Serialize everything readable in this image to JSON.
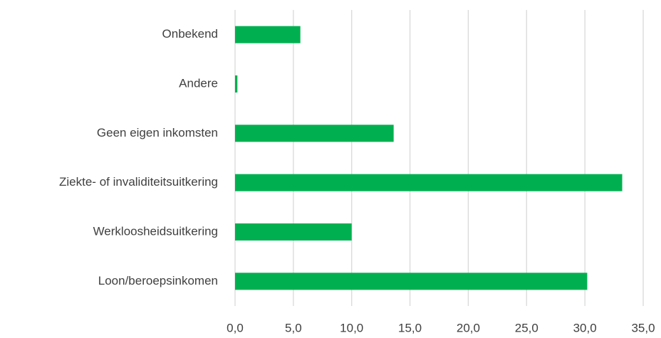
{
  "chart_data": {
    "type": "hbar",
    "categories": [
      "Onbekend",
      "Andere",
      "Geen eigen inkomsten",
      "Ziekte- of invaliditeitsuitkering",
      "Werkloosheidsuitkering",
      "Loon/beroepsinkomen"
    ],
    "values": [
      5.6,
      0.2,
      13.6,
      33.2,
      10.0,
      30.2
    ],
    "color": "#00b050",
    "xlim": [
      0,
      35
    ],
    "xticks": [
      {
        "value": 0,
        "label": "0,0"
      },
      {
        "value": 5,
        "label": "5,0"
      },
      {
        "value": 10,
        "label": "10,0"
      },
      {
        "value": 15,
        "label": "15,0"
      },
      {
        "value": 20,
        "label": "20,0"
      },
      {
        "value": 25,
        "label": "25,0"
      },
      {
        "value": 30,
        "label": "30,0"
      },
      {
        "value": 35,
        "label": "35,0"
      }
    ],
    "grid": true
  }
}
